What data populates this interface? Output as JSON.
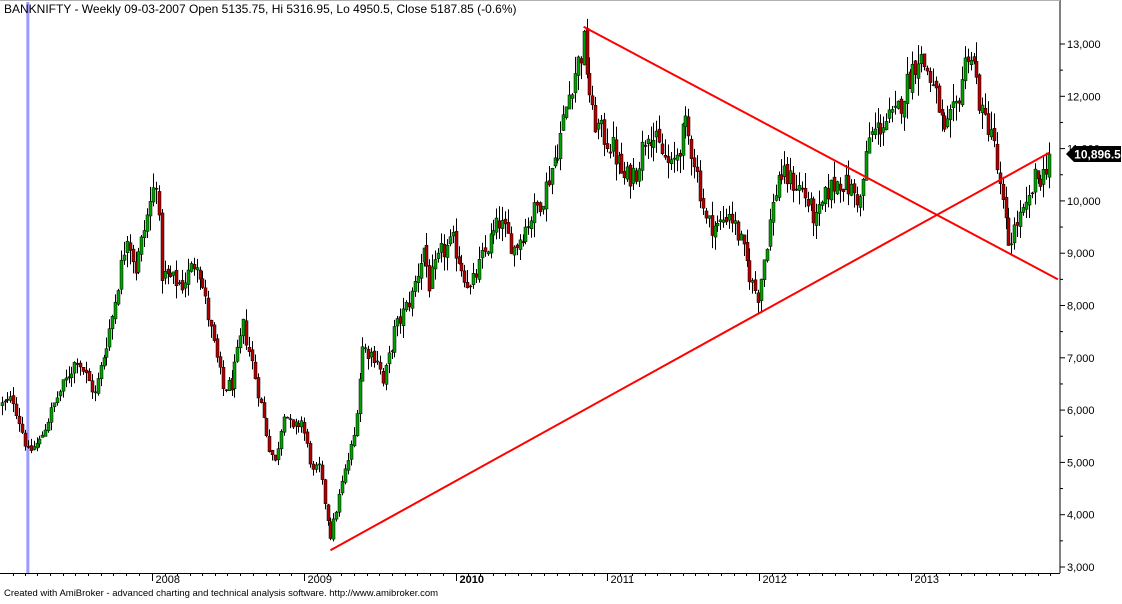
{
  "header": {
    "title": "BANKNIFTY - Weekly 09-03-2007 Open 5135.75, Hi 5316.95, Lo 4950.5, Close 5187.85 (-0.6%)"
  },
  "footer": {
    "credit": "Created with AmiBroker - advanced charting and technical analysis software. http://www.amibroker.com"
  },
  "colors": {
    "background": "#ffffff",
    "axis": "#000000",
    "up_candle": "#00a000",
    "down_candle": "#b00000",
    "trendline": "#ff0000",
    "cursor_line": "#9a9aff",
    "price_label_bg": "#000000",
    "price_label_text": "#ffffff",
    "gridline": "#c8c8c8"
  },
  "chart_data": {
    "type": "candlestick",
    "symbol": "BANKNIFTY",
    "interval": "Weekly",
    "y_axis": {
      "position": "right",
      "ticks": [
        "3,000",
        "4,000",
        "5,000",
        "6,000",
        "7,000",
        "8,000",
        "9,000",
        "10,000",
        "11,000",
        "12,000",
        "13,000"
      ],
      "tick_values": [
        3000,
        4000,
        5000,
        6000,
        7000,
        8000,
        9000,
        10000,
        11000,
        12000,
        13000
      ],
      "range": [
        2850,
        13900
      ]
    },
    "x_axis": {
      "range": [
        "2007-01-01",
        "2013-12-25"
      ],
      "year_labels": [
        "2008",
        "2009",
        "2010",
        "2011",
        "2012",
        "2013"
      ],
      "year_dates": [
        "2008-01-01",
        "2009-01-01",
        "2010-01-01",
        "2011-01-01",
        "2012-01-01",
        "2013-01-01"
      ],
      "bold_label": "2010"
    },
    "last_price_label": "10,896.5",
    "last_price": 10896.5,
    "cursor_date": "2007-03-09",
    "trendlines": [
      {
        "name": "",
        "from": {
          "date": "2009-03-06",
          "value": 3320
        },
        "to": {
          "date": "2013-11-29",
          "value": 10920
        }
      },
      {
        "name": "",
        "from": {
          "date": "2010-11-05",
          "value": 13330
        },
        "to": {
          "date": "2013-12-20",
          "value": 8500
        }
      }
    ],
    "price_anchors": [
      [
        "2007-01-05",
        6100
      ],
      [
        "2007-02-02",
        6200
      ],
      [
        "2007-03-09",
        5188
      ],
      [
        "2007-04-06",
        5400
      ],
      [
        "2007-05-18",
        6250
      ],
      [
        "2007-07-06",
        7000
      ],
      [
        "2007-08-17",
        6300
      ],
      [
        "2007-09-28",
        7800
      ],
      [
        "2007-11-02",
        9400
      ],
      [
        "2007-11-23",
        8700
      ],
      [
        "2008-01-11",
        10450
      ],
      [
        "2008-01-25",
        8600
      ],
      [
        "2008-03-14",
        8400
      ],
      [
        "2008-04-18",
        8900
      ],
      [
        "2008-06-20",
        6400
      ],
      [
        "2008-07-11",
        6500
      ],
      [
        "2008-08-08",
        7600
      ],
      [
        "2008-08-29",
        6900
      ],
      [
        "2008-10-10",
        5300
      ],
      [
        "2008-10-24",
        5000
      ],
      [
        "2008-11-14",
        6000
      ],
      [
        "2008-12-05",
        5600
      ],
      [
        "2008-12-26",
        5800
      ],
      [
        "2009-01-23",
        4800
      ],
      [
        "2009-02-06",
        4900
      ],
      [
        "2009-03-06",
        3600
      ],
      [
        "2009-04-03",
        4600
      ],
      [
        "2009-05-01",
        5500
      ],
      [
        "2009-05-22",
        7200
      ],
      [
        "2009-06-26",
        7000
      ],
      [
        "2009-07-10",
        6500
      ],
      [
        "2009-08-07",
        7500
      ],
      [
        "2009-09-18",
        8200
      ],
      [
        "2009-10-16",
        9100
      ],
      [
        "2009-10-30",
        8400
      ],
      [
        "2009-11-27",
        9000
      ],
      [
        "2009-12-25",
        9200
      ],
      [
        "2010-02-05",
        8300
      ],
      [
        "2010-03-05",
        8900
      ],
      [
        "2010-04-16",
        9600
      ],
      [
        "2010-05-21",
        9100
      ],
      [
        "2010-06-18",
        9500
      ],
      [
        "2010-07-30",
        10100
      ],
      [
        "2010-09-03",
        11000
      ],
      [
        "2010-10-08",
        12300
      ],
      [
        "2010-11-05",
        13000
      ],
      [
        "2010-11-26",
        11600
      ],
      [
        "2010-12-17",
        11300
      ],
      [
        "2011-01-14",
        11000
      ],
      [
        "2011-02-11",
        10400
      ],
      [
        "2011-03-11",
        10600
      ],
      [
        "2011-04-08",
        11400
      ],
      [
        "2011-05-06",
        11000
      ],
      [
        "2011-06-03",
        10600
      ],
      [
        "2011-07-08",
        11400
      ],
      [
        "2011-07-29",
        10800
      ],
      [
        "2011-08-26",
        9600
      ],
      [
        "2011-09-23",
        9500
      ],
      [
        "2011-10-21",
        9800
      ],
      [
        "2011-11-18",
        9200
      ],
      [
        "2011-12-16",
        8400
      ],
      [
        "2011-12-30",
        8200
      ],
      [
        "2012-01-27",
        9600
      ],
      [
        "2012-02-17",
        10500
      ],
      [
        "2012-03-16",
        10400
      ],
      [
        "2012-04-13",
        10200
      ],
      [
        "2012-05-18",
        9600
      ],
      [
        "2012-06-15",
        10200
      ],
      [
        "2012-07-13",
        10400
      ],
      [
        "2012-08-10",
        10200
      ],
      [
        "2012-08-31",
        10000
      ],
      [
        "2012-09-21",
        11200
      ],
      [
        "2012-10-26",
        11500
      ],
      [
        "2012-11-23",
        11600
      ],
      [
        "2012-12-28",
        12400
      ],
      [
        "2013-01-18",
        12800
      ],
      [
        "2013-02-08",
        12500
      ],
      [
        "2013-03-08",
        11800
      ],
      [
        "2013-03-22",
        11200
      ],
      [
        "2013-04-19",
        11800
      ],
      [
        "2013-05-17",
        12900
      ],
      [
        "2013-05-31",
        12600
      ],
      [
        "2013-06-21",
        11600
      ],
      [
        "2013-07-12",
        11400
      ],
      [
        "2013-08-02",
        10200
      ],
      [
        "2013-08-23",
        9200
      ],
      [
        "2013-09-13",
        9600
      ],
      [
        "2013-10-04",
        9800
      ],
      [
        "2013-10-25",
        10400
      ],
      [
        "2013-11-15",
        10500
      ],
      [
        "2013-11-29",
        10896.5
      ]
    ]
  }
}
